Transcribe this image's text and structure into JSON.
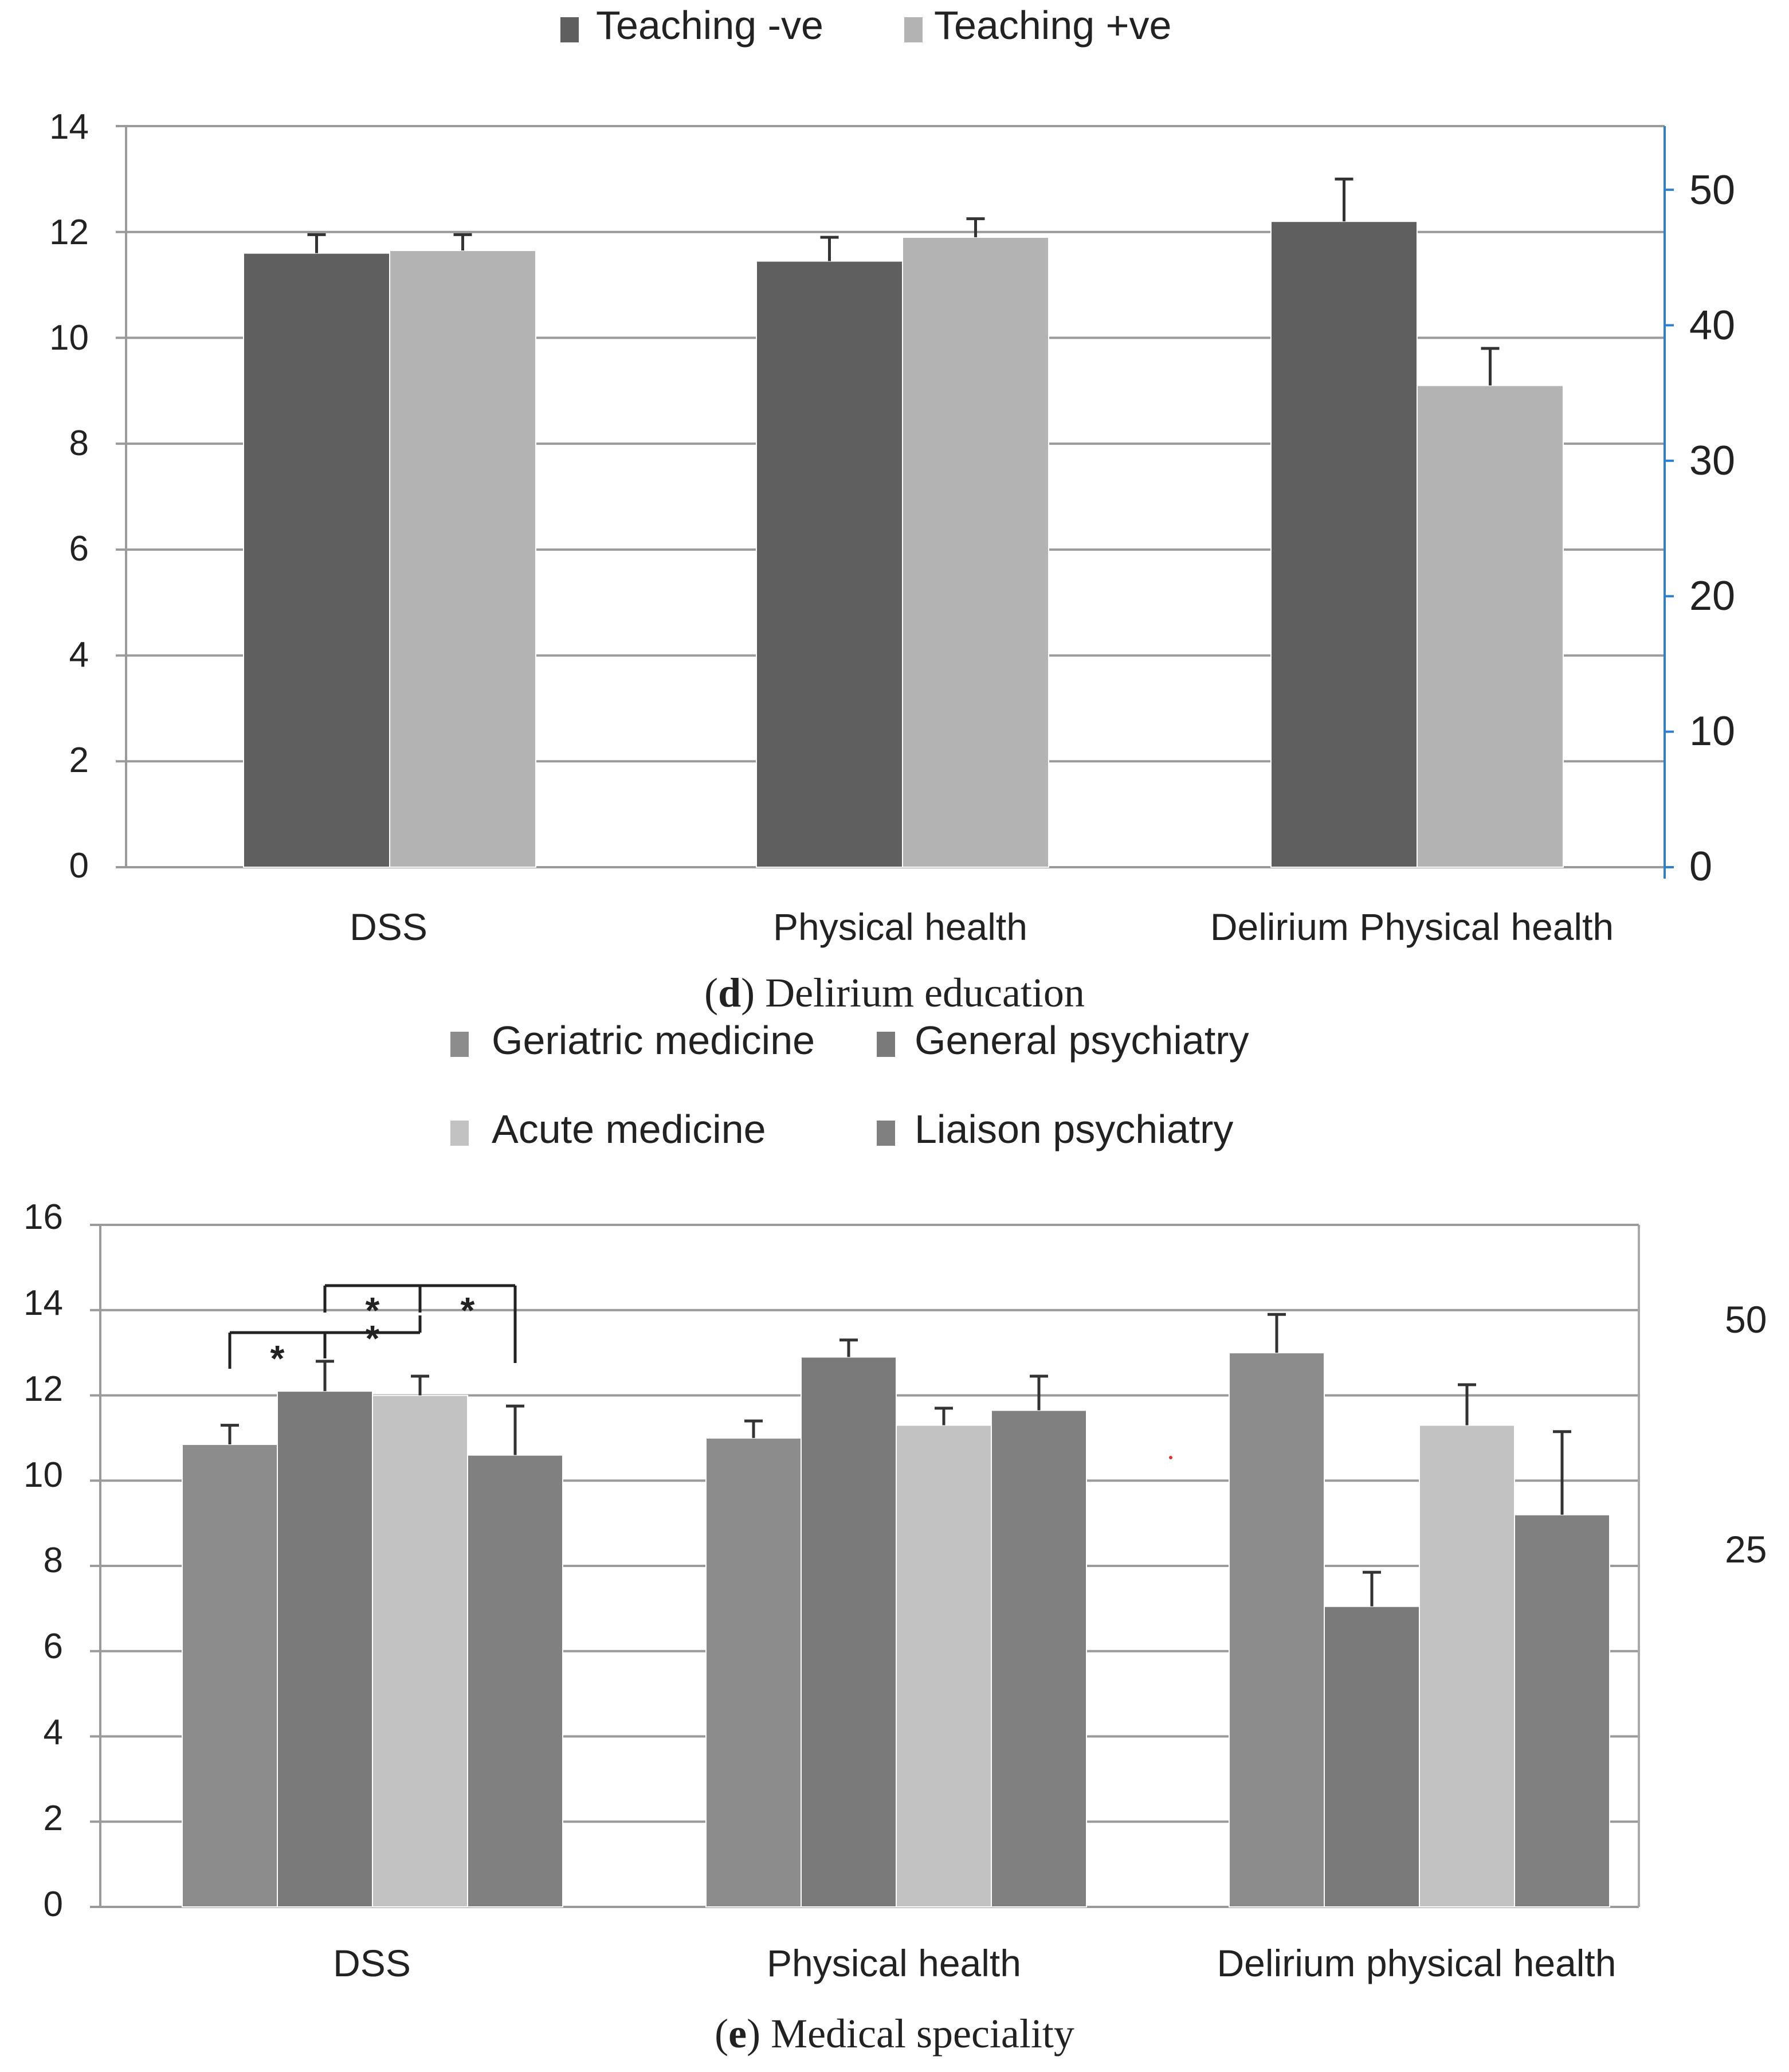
{
  "chart_data": [
    {
      "type": "bar",
      "caption_letter": "d",
      "caption_text": " Delirium education",
      "categories": [
        "DSS",
        "Physical health",
        "Delirium Physical health"
      ],
      "series": [
        {
          "name": "Teaching -ve",
          "color": "#5f5f5f",
          "values": [
            11.6,
            11.45,
            12.2
          ],
          "errors": [
            0.35,
            0.45,
            0.8
          ]
        },
        {
          "name": "Teaching +ve",
          "color": "#b3b3b3",
          "values": [
            11.65,
            11.9,
            9.1
          ],
          "errors": [
            0.3,
            0.35,
            0.7
          ]
        }
      ],
      "ylim": [
        0,
        14
      ],
      "yticks": [
        "0",
        "2",
        "4",
        "6",
        "8",
        "10",
        "12",
        "14"
      ],
      "y2lim": [
        0,
        54.7
      ],
      "y2ticks": [
        "0",
        "10",
        "20",
        "30",
        "40",
        "50"
      ],
      "grid": true,
      "legend_position": "top"
    },
    {
      "type": "bar",
      "caption_letter": "e",
      "caption_text": " Medical speciality",
      "categories": [
        "DSS",
        "Physical health",
        "Delirium physical health"
      ],
      "series": [
        {
          "name": "Geriatric medicine",
          "color": "#8c8c8c",
          "values": [
            10.85,
            11.0,
            13.0
          ],
          "errors": [
            0.45,
            0.4,
            0.9
          ]
        },
        {
          "name": "General psychiatry",
          "color": "#7a7a7a",
          "values": [
            12.1,
            12.9,
            7.05
          ],
          "errors": [
            0.7,
            0.4,
            0.8
          ]
        },
        {
          "name": "Acute medicine",
          "color": "#c2c2c2",
          "values": [
            12.0,
            11.3,
            11.3
          ],
          "errors": [
            0.45,
            0.4,
            0.95
          ]
        },
        {
          "name": "Liaison psychiatry",
          "color": "#808080",
          "values": [
            10.6,
            11.65,
            9.2
          ],
          "errors": [
            1.15,
            0.8,
            1.95
          ]
        }
      ],
      "ylim": [
        0,
        16
      ],
      "yticks": [
        "0",
        "2",
        "4",
        "6",
        "8",
        "10",
        "12",
        "14",
        "16"
      ],
      "y2lim": [
        0,
        62.5
      ],
      "y2ticks": [
        "25",
        "50"
      ],
      "grid": true,
      "legend_position": "top",
      "significance_marker": "*"
    }
  ]
}
